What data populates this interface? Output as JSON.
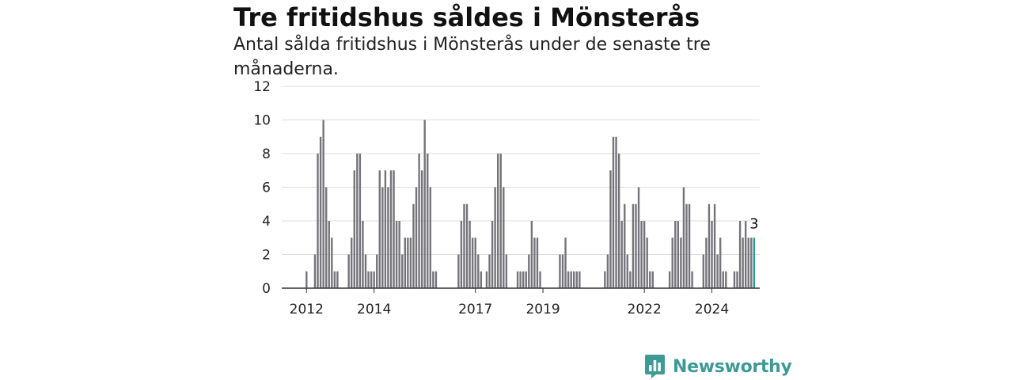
{
  "title": "Tre fritidshus såldes i Mönsterås",
  "subtitle": "Antal sålda fritidshus i Mönsterås under de senaste tre månaderna.",
  "brand": {
    "name": "Newsworthy",
    "color": "#3d9a96",
    "icon": "bar-chart-speech-bubble-icon"
  },
  "colors": {
    "bar": "#75747b",
    "highlight": "#2a9d95",
    "grid": "#dddddd",
    "axis": "#333333"
  },
  "chart_data": {
    "type": "bar",
    "title": "Tre fritidshus såldes i Mönsterås",
    "subtitle": "Antal sålda fritidshus i Mönsterås under de senaste tre månaderna.",
    "xlabel": "",
    "ylabel": "",
    "ylim": [
      0,
      12
    ],
    "yticks": [
      0,
      2,
      4,
      6,
      8,
      10,
      12
    ],
    "x_tick_labels": [
      {
        "label": "2012",
        "index": 0
      },
      {
        "label": "2014",
        "index": 24
      },
      {
        "label": "2017",
        "index": 60
      },
      {
        "label": "2019",
        "index": 84
      },
      {
        "label": "2022",
        "index": 120
      },
      {
        "label": "2024",
        "index": 144
      }
    ],
    "grid": true,
    "legend": "none",
    "highlight_last": true,
    "last_value_label": "3",
    "values": [
      1,
      0,
      0,
      2,
      8,
      9,
      10,
      6,
      4,
      3,
      1,
      1,
      0,
      0,
      0,
      2,
      3,
      7,
      8,
      8,
      4,
      2,
      1,
      1,
      1,
      2,
      7,
      6,
      7,
      6,
      7,
      7,
      4,
      4,
      2,
      3,
      3,
      3,
      5,
      6,
      8,
      7,
      10,
      8,
      6,
      1,
      1,
      0,
      0,
      0,
      0,
      0,
      0,
      0,
      2,
      4,
      5,
      5,
      4,
      3,
      3,
      2,
      1,
      0,
      1,
      2,
      4,
      6,
      8,
      8,
      6,
      2,
      0,
      0,
      0,
      1,
      1,
      1,
      1,
      2,
      4,
      3,
      3,
      1,
      0,
      0,
      0,
      0,
      0,
      0,
      2,
      2,
      3,
      1,
      1,
      1,
      1,
      1,
      0,
      0,
      0,
      0,
      0,
      0,
      0,
      0,
      1,
      2,
      7,
      9,
      9,
      8,
      4,
      5,
      2,
      1,
      5,
      5,
      6,
      4,
      4,
      3,
      1,
      1,
      0,
      0,
      0,
      0,
      0,
      1,
      3,
      4,
      4,
      3,
      6,
      5,
      5,
      1,
      0,
      0,
      0,
      2,
      3,
      5,
      4,
      5,
      2,
      3,
      1,
      1,
      0,
      0,
      1,
      1,
      4,
      3,
      4,
      3,
      3,
      3
    ]
  }
}
